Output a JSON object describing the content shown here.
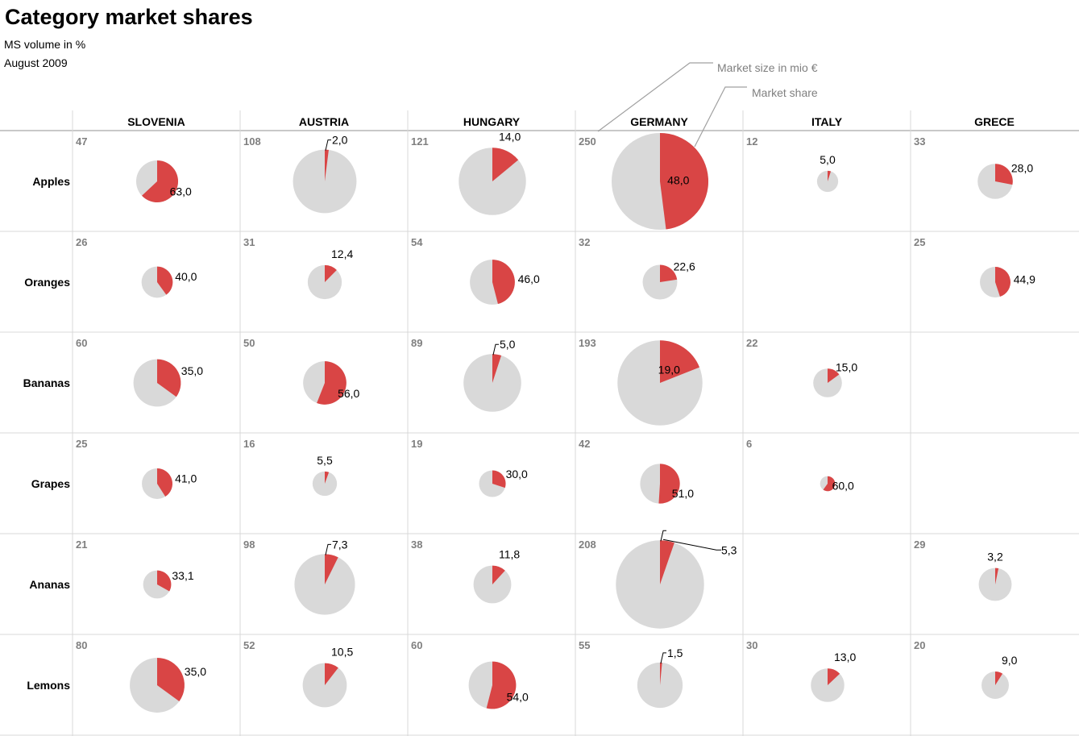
{
  "title": "Category market shares",
  "subtitle": "MS volume in %",
  "date": "August 2009",
  "legend": {
    "size_label": "Market size in mio €",
    "share_label": "Market  share"
  },
  "colors": {
    "share": "#d94545",
    "rest": "#d9d9d9",
    "grid": "#d9d9d9",
    "header_rule": "#c8c8c8",
    "size_text": "#7f7f7f"
  },
  "chart_data": {
    "type": "pie",
    "columns": [
      "SLOVENIA",
      "AUSTRIA",
      "HUNGARY",
      "GERMANY",
      "ITALY",
      "GRECE"
    ],
    "rows": [
      "Apples",
      "Oranges",
      "Bananas",
      "Grapes",
      "Ananas",
      "Lemons"
    ],
    "cells": [
      [
        {
          "size": "47",
          "share": "63,0"
        },
        {
          "size": "108",
          "share": "2,0"
        },
        {
          "size": "121",
          "share": "14,0"
        },
        {
          "size": "250",
          "share": "48,0"
        },
        {
          "size": "12",
          "share": "5,0"
        },
        {
          "size": "33",
          "share": "28,0"
        }
      ],
      [
        {
          "size": "26",
          "share": "40,0"
        },
        {
          "size": "31",
          "share": "12,4"
        },
        {
          "size": "54",
          "share": "46,0"
        },
        {
          "size": "32",
          "share": "22,6"
        },
        null,
        {
          "size": "25",
          "share": "44,9"
        }
      ],
      [
        {
          "size": "60",
          "share": "35,0"
        },
        {
          "size": "50",
          "share": "56,0"
        },
        {
          "size": "89",
          "share": "5,0"
        },
        {
          "size": "193",
          "share": "19,0"
        },
        {
          "size": "22",
          "share": "15,0"
        },
        null
      ],
      [
        {
          "size": "25",
          "share": "41,0"
        },
        {
          "size": "16",
          "share": "5,5"
        },
        {
          "size": "19",
          "share": "30,0"
        },
        {
          "size": "42",
          "share": "51,0"
        },
        {
          "size": "6",
          "share": "60,0"
        },
        null
      ],
      [
        {
          "size": "21",
          "share": "33,1"
        },
        {
          "size": "98",
          "share": "7,3"
        },
        {
          "size": "38",
          "share": "11,8"
        },
        {
          "size": "208",
          "share": "5,3"
        },
        null,
        {
          "size": "29",
          "share": "3,2"
        }
      ],
      [
        {
          "size": "80",
          "share": "35,0"
        },
        {
          "size": "52",
          "share": "10,5"
        },
        {
          "size": "60",
          "share": "54,0"
        },
        {
          "size": "55",
          "share": "1,5"
        },
        {
          "size": "30",
          "share": "13,0"
        },
        {
          "size": "20",
          "share": "9,0"
        }
      ]
    ]
  }
}
